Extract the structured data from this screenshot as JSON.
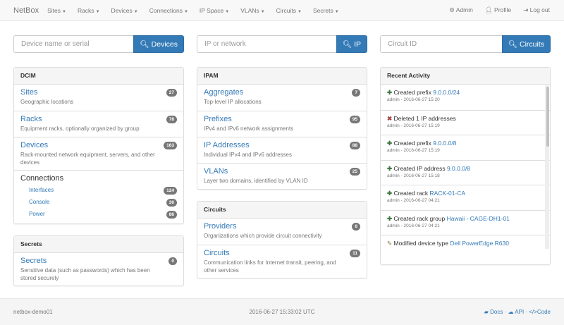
{
  "nav": {
    "brand": "NetBox",
    "menus": [
      "Sites",
      "Racks",
      "Devices",
      "Connections",
      "IP Space",
      "VLANs",
      "Circuits",
      "Secrets"
    ],
    "admin": "Admin",
    "profile": "Profile",
    "logout": "Log out"
  },
  "search": [
    {
      "placeholder": "Device name or serial",
      "button": "Devices"
    },
    {
      "placeholder": "IP or network",
      "button": "IP"
    },
    {
      "placeholder": "Circuit ID",
      "button": "Circuits"
    }
  ],
  "dcim": {
    "title": "DCIM",
    "items": [
      {
        "label": "Sites",
        "desc": "Geographic locations",
        "count": "27"
      },
      {
        "label": "Racks",
        "desc": "Equipment racks, optionally organized by group",
        "count": "78"
      },
      {
        "label": "Devices",
        "desc": "Rack-mounted network equipment, servers, and other devices",
        "count": "163"
      }
    ],
    "connections": {
      "label": "Connections",
      "items": [
        {
          "label": "Interfaces",
          "count": "124"
        },
        {
          "label": "Console",
          "count": "30"
        },
        {
          "label": "Power",
          "count": "86"
        }
      ]
    }
  },
  "secrets": {
    "title": "Secrets",
    "items": [
      {
        "label": "Secrets",
        "desc": "Sensitive data (such as passwords) which has been stored securely",
        "count": "0"
      }
    ]
  },
  "ipam": {
    "title": "IPAM",
    "items": [
      {
        "label": "Aggregates",
        "desc": "Top-level IP allocations",
        "count": "7"
      },
      {
        "label": "Prefixes",
        "desc": "IPv4 and IPv6 network assignments",
        "count": "95"
      },
      {
        "label": "IP Addresses",
        "desc": "Individual IPv4 and IPv6 addresses",
        "count": "88"
      },
      {
        "label": "VLANs",
        "desc": "Layer two domains, identified by VLAN ID",
        "count": "25"
      }
    ]
  },
  "circuits": {
    "title": "Circuits",
    "items": [
      {
        "label": "Providers",
        "desc": "Organizations which provide circuit connectivity",
        "count": "6"
      },
      {
        "label": "Circuits",
        "desc": "Communication links for Internet transit, peering, and other services",
        "count": "11"
      }
    ]
  },
  "activity": {
    "title": "Recent Activity",
    "items": [
      {
        "icon": "plus",
        "action": "Created prefix",
        "link": "9.0.0.0/24",
        "meta": "admin - 2016-06-27 15:20"
      },
      {
        "icon": "remove",
        "action": "Deleted 1 IP addresses",
        "link": "",
        "meta": "admin - 2016-06-27 15:19"
      },
      {
        "icon": "plus",
        "action": "Created prefix",
        "link": "9.0.0.0/8",
        "meta": "admin - 2016-06-27 15:19"
      },
      {
        "icon": "plus",
        "action": "Created IP address",
        "link": "9.0.0.0/8",
        "meta": "admin - 2016-06-27 15:18"
      },
      {
        "icon": "plus",
        "action": "Created rack",
        "link": "RACK-01-CA",
        "meta": "admin - 2016-06-27 04:21"
      },
      {
        "icon": "plus",
        "action": "Created rack group",
        "link": "Hawaii - CAGE-DH1-01",
        "meta": "admin - 2016-06-27 04:21"
      },
      {
        "icon": "pencil",
        "action": "Modified device type",
        "link": "Dell PowerEdge R630",
        "meta": ""
      }
    ]
  },
  "footer": {
    "hostname": "netbox-demo01",
    "time": "2016-06-27 15:33:02 UTC",
    "docs": "Docs",
    "api": "API",
    "code": "Code"
  }
}
